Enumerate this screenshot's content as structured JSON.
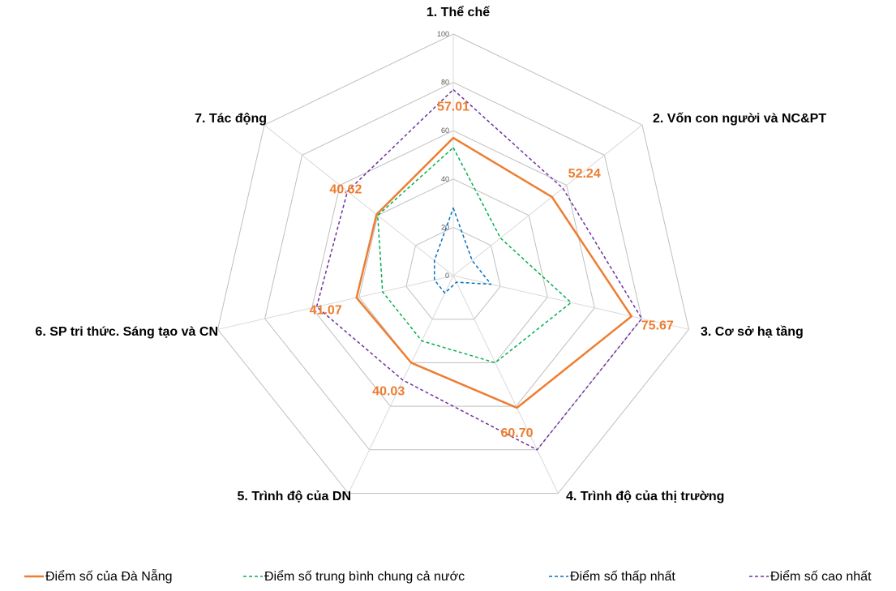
{
  "chart_data": {
    "type": "radar",
    "axes": [
      "1. Thể chế",
      "2. Vốn con người và NC&PT",
      "3. Cơ sở hạ tầng",
      "4. Trình độ của thị trường",
      "5. Trình độ của DN",
      "6. SP tri thức. Sáng tạo và CN",
      "7. Tác động"
    ],
    "ticks": [
      0,
      20,
      40,
      60,
      80,
      100
    ],
    "range": [
      0,
      100
    ],
    "grid": true,
    "legend_position": "bottom",
    "series": [
      {
        "name": "Điểm số của Đà Nẵng",
        "color": "#ED7D31",
        "style": "solid",
        "values": [
          57.01,
          52.24,
          75.67,
          60.7,
          40.03,
          41.07,
          40.62
        ],
        "data_labels": [
          "57.01",
          "52.24",
          "75.67",
          "60.70",
          "40.03",
          "41.07",
          "40.62"
        ]
      },
      {
        "name": "Điểm số trung bình chung cả nước",
        "color": "#00B050",
        "style": "dashed",
        "values": [
          53,
          25,
          50,
          40,
          30,
          30,
          40
        ]
      },
      {
        "name": "Điểm số thấp nhất",
        "color": "#0070C0",
        "style": "dashed",
        "values": [
          28,
          10,
          16,
          3,
          8,
          8,
          10
        ]
      },
      {
        "name": "Điểm số cao nhất",
        "color": "#7030A0",
        "style": "dashed",
        "values": [
          77,
          58,
          80,
          80,
          48,
          58,
          56
        ]
      }
    ]
  }
}
